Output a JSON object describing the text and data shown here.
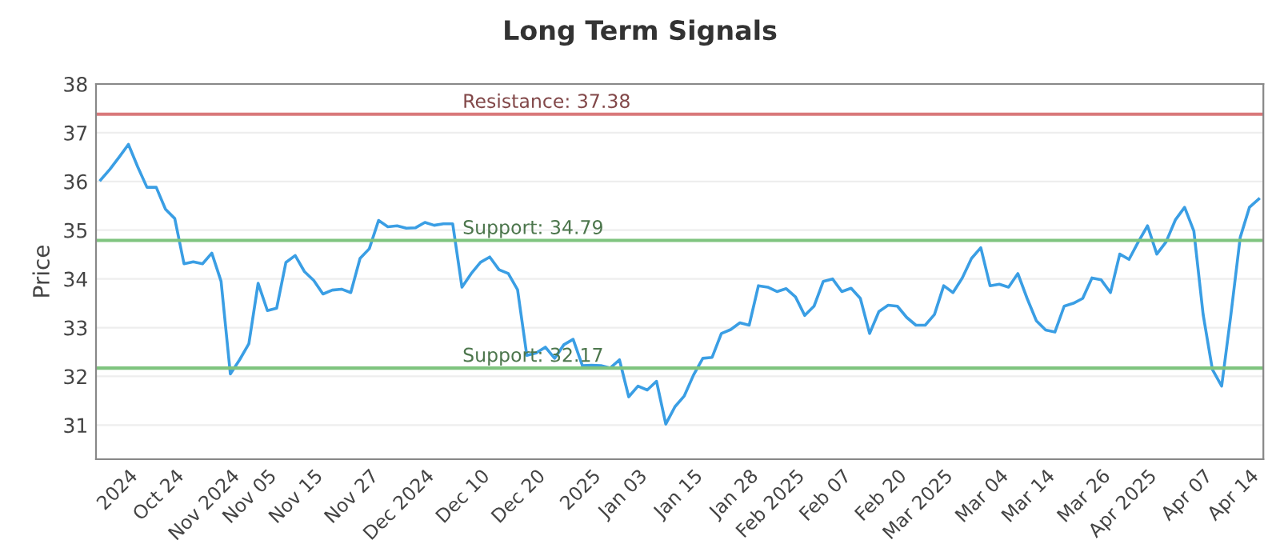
{
  "chart_data": {
    "type": "line",
    "title": "Long Term Signals",
    "ylabel": "Price",
    "categories": [
      null,
      null,
      null,
      "2024",
      null,
      null,
      null,
      null,
      "Oct 24",
      null,
      null,
      null,
      null,
      null,
      "Nov 2024",
      null,
      null,
      null,
      "Nov 05",
      null,
      null,
      null,
      null,
      "Nov 15",
      null,
      null,
      null,
      null,
      null,
      "Nov 27",
      null,
      null,
      null,
      null,
      null,
      "Dec 2024",
      null,
      null,
      null,
      null,
      null,
      "Dec 10",
      null,
      null,
      null,
      null,
      null,
      "Dec 20",
      null,
      null,
      null,
      null,
      null,
      "2025",
      null,
      null,
      null,
      null,
      "Jan 03",
      null,
      null,
      null,
      null,
      null,
      "Jan 15",
      null,
      null,
      null,
      null,
      null,
      "Jan 28",
      null,
      null,
      null,
      null,
      "Feb 2025",
      null,
      null,
      null,
      null,
      "Feb 07",
      null,
      null,
      null,
      null,
      null,
      "Feb 20",
      null,
      null,
      null,
      null,
      "Mar 2025",
      null,
      null,
      null,
      null,
      null,
      "Mar 04",
      null,
      null,
      null,
      null,
      "Mar 14",
      null,
      null,
      null,
      null,
      null,
      "Mar 26",
      null,
      null,
      null,
      null,
      "Apr 2025",
      null,
      null,
      null,
      null,
      null,
      "Apr 07",
      null,
      null,
      null,
      null,
      "Apr 14",
      null
    ],
    "series": [
      {
        "color": "#3a9ee4",
        "values": [
          36.03,
          36.25,
          36.5,
          36.76,
          36.3,
          35.88,
          35.88,
          35.43,
          35.24,
          34.31,
          34.35,
          34.31,
          34.53,
          33.95,
          32.05,
          32.34,
          32.67,
          33.91,
          33.35,
          33.4,
          34.34,
          34.48,
          34.15,
          33.97,
          33.69,
          33.77,
          33.79,
          33.72,
          34.42,
          34.62,
          35.2,
          35.07,
          35.09,
          35.04,
          35.05,
          35.16,
          35.1,
          35.13,
          35.13,
          33.83,
          34.11,
          34.34,
          34.45,
          34.19,
          34.11,
          33.78,
          32.43,
          32.48,
          32.6,
          32.37,
          32.65,
          32.76,
          32.22,
          32.23,
          32.22,
          32.17,
          32.34,
          31.58,
          31.8,
          31.72,
          31.9,
          31.02,
          31.38,
          31.6,
          32.03,
          32.37,
          32.39,
          32.88,
          32.96,
          33.1,
          33.05,
          33.86,
          33.83,
          33.74,
          33.8,
          33.63,
          33.25,
          33.44,
          33.95,
          34.0,
          33.74,
          33.81,
          33.6,
          32.88,
          33.33,
          33.46,
          33.44,
          33.21,
          33.05,
          33.05,
          33.27,
          33.86,
          33.72,
          34.02,
          34.42,
          34.64,
          33.86,
          33.89,
          33.83,
          34.11,
          33.6,
          33.14,
          32.95,
          32.91,
          33.44,
          33.5,
          33.6,
          34.02,
          33.98,
          33.72,
          34.51,
          34.4,
          34.76,
          35.09,
          34.51,
          34.76,
          35.21,
          35.47,
          34.98,
          33.27,
          32.14,
          31.8,
          33.27,
          34.85,
          35.47,
          35.64
        ]
      }
    ],
    "ylim": [
      30.3,
      38
    ],
    "yticks": [
      31,
      32,
      33,
      34,
      35,
      36,
      37,
      38
    ],
    "grid": "y",
    "line_style": "solid",
    "ref_lines": [
      {
        "axis": "y",
        "value": 37.38,
        "label": "Resistance: 37.38",
        "color": "#d9787a"
      },
      {
        "axis": "y",
        "value": 34.79,
        "label": "Support: 34.79",
        "color": "#7fc47f"
      },
      {
        "axis": "y",
        "value": 32.17,
        "label": "Support: 32.17",
        "color": "#7fc47f"
      }
    ]
  }
}
